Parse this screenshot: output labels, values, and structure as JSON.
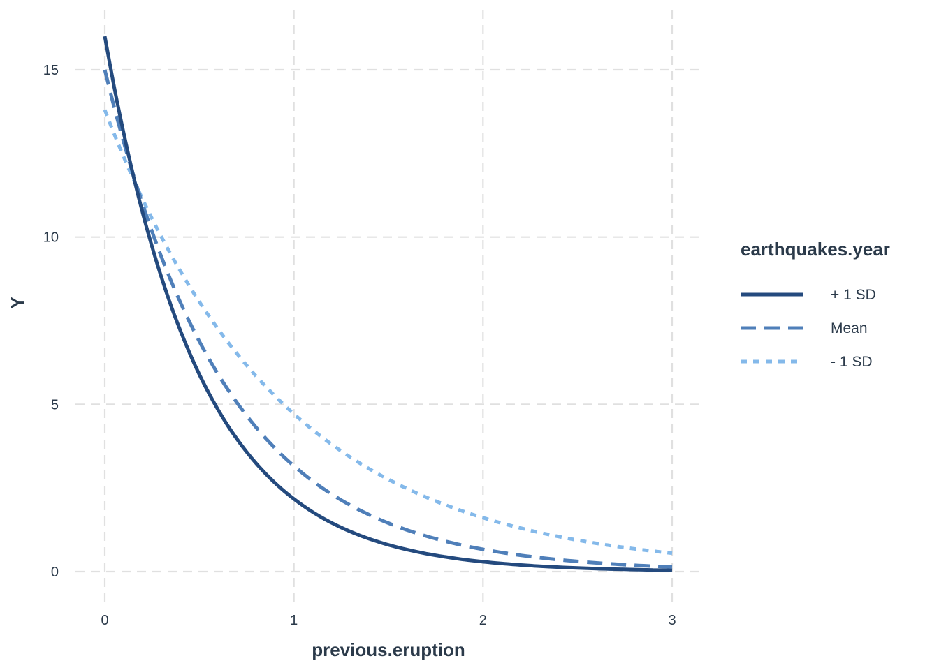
{
  "chart_data": {
    "type": "line",
    "title": "",
    "xlabel": "previous.eruption",
    "ylabel": "Y",
    "xlim": [
      0,
      3
    ],
    "ylim": [
      0,
      16
    ],
    "grid": true,
    "x_ticks": [
      0,
      1,
      2,
      3
    ],
    "x_tick_labels": [
      "0",
      "1",
      "2",
      "3"
    ],
    "y_ticks": [
      0,
      5,
      10,
      15
    ],
    "y_tick_labels": [
      "0",
      "5",
      "10",
      "15"
    ],
    "legend": {
      "title": "earthquakes.year",
      "placement": "right"
    },
    "x": [
      0,
      0.1,
      0.2,
      0.3,
      0.4,
      0.5,
      0.6,
      0.7,
      0.8,
      0.9,
      1.0,
      1.2,
      1.4,
      1.6,
      1.8,
      2.0,
      2.2,
      2.4,
      2.6,
      2.8,
      3.0
    ],
    "series": [
      {
        "name": "+ 1 SD",
        "color": "#244a7e",
        "dash": "solid",
        "values": [
          16.0,
          12.2,
          9.4,
          7.2,
          5.6,
          4.35,
          3.4,
          2.7,
          2.15,
          1.72,
          2.2,
          1.45,
          0.95,
          0.65,
          0.45,
          0.3,
          0.2,
          0.14,
          0.09,
          0.06,
          0.04
        ]
      },
      {
        "name": "Mean",
        "color": "#4f7fb9",
        "dash": "dashed",
        "values": [
          15.0,
          12.3,
          9.9,
          8.1,
          6.6,
          5.45,
          4.55,
          3.8,
          3.2,
          2.75,
          3.2,
          2.4,
          1.75,
          1.3,
          0.95,
          0.7,
          0.52,
          0.38,
          0.28,
          0.2,
          0.14
        ]
      },
      {
        "name": "- 1 SD",
        "color": "#84b9ea",
        "dash": "dotted",
        "values": [
          13.8,
          12.0,
          10.3,
          8.9,
          7.75,
          6.8,
          6.0,
          5.35,
          4.8,
          4.35,
          4.8,
          3.85,
          3.1,
          2.55,
          2.05,
          1.65,
          1.35,
          1.1,
          0.9,
          0.7,
          0.55
        ]
      }
    ]
  }
}
